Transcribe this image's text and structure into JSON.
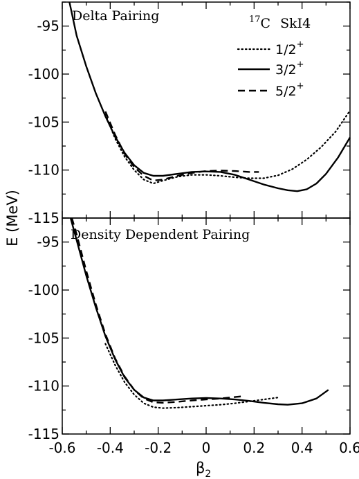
{
  "chart_data": [
    {
      "type": "line",
      "title": "Delta Pairing",
      "annotation": {
        "nucleus_mass": "17",
        "nucleus_symbol": "C",
        "force": "SkI4"
      },
      "xlim": [
        -0.6,
        0.6
      ],
      "ylim": [
        -115,
        -92.5
      ],
      "yticks": [
        -115,
        -110,
        -105,
        -100,
        -95
      ],
      "legend_position": "top-right",
      "series": [
        {
          "name": "1/2",
          "parity": "+",
          "dash": "dotted",
          "points": [
            [
              -0.42,
              -104.2
            ],
            [
              -0.38,
              -106.7
            ],
            [
              -0.34,
              -108.6
            ],
            [
              -0.3,
              -110.0
            ],
            [
              -0.26,
              -111.0
            ],
            [
              -0.22,
              -111.4
            ],
            [
              -0.18,
              -111.1
            ],
            [
              -0.12,
              -110.7
            ],
            [
              -0.06,
              -110.5
            ],
            [
              0.0,
              -110.5
            ],
            [
              0.06,
              -110.6
            ],
            [
              0.12,
              -110.75
            ],
            [
              0.18,
              -110.85
            ],
            [
              0.24,
              -110.85
            ],
            [
              0.3,
              -110.55
            ],
            [
              0.36,
              -109.9
            ],
            [
              0.42,
              -108.9
            ],
            [
              0.48,
              -107.6
            ],
            [
              0.54,
              -106.0
            ],
            [
              0.6,
              -103.8
            ]
          ]
        },
        {
          "name": "3/2",
          "parity": "+",
          "dash": "solid",
          "points": [
            [
              -0.57,
              -92.5
            ],
            [
              -0.54,
              -96.0
            ],
            [
              -0.5,
              -99.2
            ],
            [
              -0.46,
              -102.0
            ],
            [
              -0.42,
              -104.4
            ],
            [
              -0.38,
              -106.5
            ],
            [
              -0.34,
              -108.2
            ],
            [
              -0.3,
              -109.5
            ],
            [
              -0.26,
              -110.3
            ],
            [
              -0.22,
              -110.6
            ],
            [
              -0.18,
              -110.6
            ],
            [
              -0.12,
              -110.4
            ],
            [
              -0.06,
              -110.2
            ],
            [
              0.0,
              -110.15
            ],
            [
              0.06,
              -110.2
            ],
            [
              0.12,
              -110.5
            ],
            [
              0.18,
              -111.0
            ],
            [
              0.24,
              -111.5
            ],
            [
              0.3,
              -111.9
            ],
            [
              0.34,
              -112.1
            ],
            [
              0.38,
              -112.2
            ],
            [
              0.42,
              -112.0
            ],
            [
              0.46,
              -111.4
            ],
            [
              0.5,
              -110.4
            ],
            [
              0.55,
              -108.7
            ],
            [
              0.6,
              -106.6
            ]
          ]
        },
        {
          "name": "5/2",
          "parity": "+",
          "dash": "dashed",
          "points": [
            [
              -0.42,
              -103.9
            ],
            [
              -0.38,
              -106.3
            ],
            [
              -0.34,
              -108.3
            ],
            [
              -0.3,
              -109.7
            ],
            [
              -0.26,
              -110.6
            ],
            [
              -0.22,
              -111.1
            ],
            [
              -0.18,
              -111.0
            ],
            [
              -0.12,
              -110.6
            ],
            [
              -0.06,
              -110.3
            ],
            [
              0.0,
              -110.1
            ],
            [
              0.06,
              -110.05
            ],
            [
              0.12,
              -110.1
            ],
            [
              0.18,
              -110.2
            ],
            [
              0.22,
              -110.2
            ]
          ]
        }
      ]
    },
    {
      "type": "line",
      "title": "Density Dependent Pairing",
      "xlabel": "β",
      "xlabel_sub": "2",
      "ylabel": "E  (MeV)",
      "xlim": [
        -0.6,
        0.6
      ],
      "ylim": [
        -115,
        -92.5
      ],
      "yticks": [
        -115,
        -110,
        -105,
        -100,
        -95
      ],
      "xticks": [
        -0.6,
        -0.4,
        -0.2,
        0,
        0.2,
        0.4,
        0.6
      ],
      "xtick_labels": [
        "-0.6",
        "-0.4",
        "-0.2",
        "0",
        "0.2",
        "0.4",
        "0.6"
      ],
      "series": [
        {
          "name": "1/2",
          "parity": "+",
          "dash": "dotted",
          "points": [
            [
              -0.42,
              -105.6
            ],
            [
              -0.38,
              -107.8
            ],
            [
              -0.34,
              -109.6
            ],
            [
              -0.3,
              -110.9
            ],
            [
              -0.26,
              -111.8
            ],
            [
              -0.22,
              -112.2
            ],
            [
              -0.18,
              -112.3
            ],
            [
              -0.12,
              -112.25
            ],
            [
              -0.06,
              -112.15
            ],
            [
              0.0,
              -112.05
            ],
            [
              0.06,
              -111.95
            ],
            [
              0.12,
              -111.8
            ],
            [
              0.18,
              -111.6
            ],
            [
              0.24,
              -111.4
            ],
            [
              0.3,
              -111.2
            ]
          ]
        },
        {
          "name": "3/2",
          "parity": "+",
          "dash": "solid",
          "points": [
            [
              -0.565,
              -92.5
            ],
            [
              -0.54,
              -94.8
            ],
            [
              -0.5,
              -98.5
            ],
            [
              -0.46,
              -101.8
            ],
            [
              -0.42,
              -104.8
            ],
            [
              -0.38,
              -107.2
            ],
            [
              -0.34,
              -109.1
            ],
            [
              -0.3,
              -110.4
            ],
            [
              -0.26,
              -111.2
            ],
            [
              -0.22,
              -111.5
            ],
            [
              -0.18,
              -111.5
            ],
            [
              -0.12,
              -111.4
            ],
            [
              -0.06,
              -111.3
            ],
            [
              0.0,
              -111.25
            ],
            [
              0.06,
              -111.3
            ],
            [
              0.12,
              -111.4
            ],
            [
              0.18,
              -111.55
            ],
            [
              0.24,
              -111.75
            ],
            [
              0.3,
              -111.9
            ],
            [
              0.34,
              -111.95
            ],
            [
              0.4,
              -111.8
            ],
            [
              0.46,
              -111.3
            ],
            [
              0.51,
              -110.4
            ]
          ]
        },
        {
          "name": "5/2",
          "parity": "+",
          "dash": "dashed",
          "points": [
            [
              -0.56,
              -92.5
            ],
            [
              -0.54,
              -94.2
            ],
            [
              -0.5,
              -98.0
            ],
            [
              -0.46,
              -101.5
            ],
            [
              -0.42,
              -104.6
            ],
            [
              -0.38,
              -107.1
            ],
            [
              -0.34,
              -109.0
            ],
            [
              -0.3,
              -110.4
            ],
            [
              -0.26,
              -111.3
            ],
            [
              -0.22,
              -111.7
            ],
            [
              -0.18,
              -111.75
            ],
            [
              -0.12,
              -111.65
            ],
            [
              -0.06,
              -111.5
            ],
            [
              0.0,
              -111.4
            ],
            [
              0.06,
              -111.3
            ],
            [
              0.12,
              -111.15
            ],
            [
              0.16,
              -111.05
            ]
          ]
        }
      ]
    }
  ]
}
